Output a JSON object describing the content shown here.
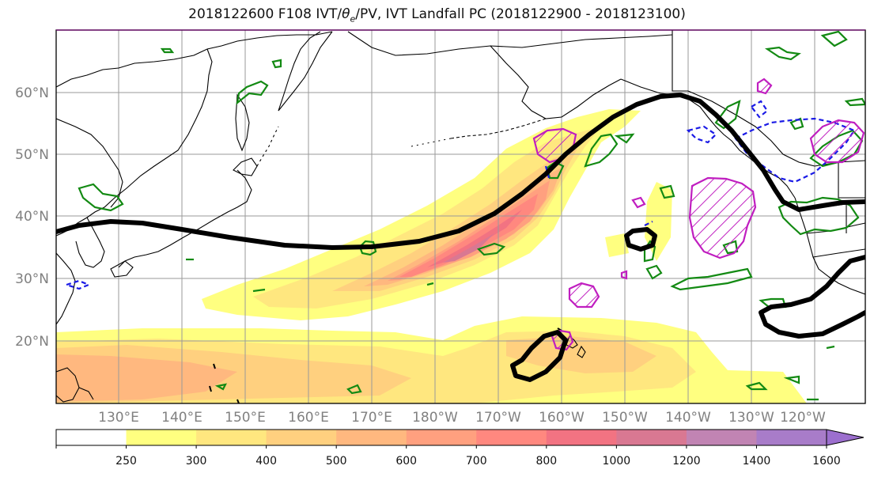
{
  "title": {
    "prefix": "2018122600 F108 IVT/",
    "theta": "θ",
    "theta_sub": "e",
    "suffix": "/PV, IVT Landfall PC (2018122900 - 2018123100)"
  },
  "lat_labels": [
    "60°N",
    "50°N",
    "40°N",
    "30°N",
    "20°N"
  ],
  "lon_labels": [
    "130°E",
    "140°E",
    "150°E",
    "160°E",
    "170°E",
    "180°W",
    "170°W",
    "160°W",
    "150°W",
    "140°W",
    "130°W",
    "120°W"
  ],
  "colorbar": {
    "ticks": [
      "250",
      "300",
      "400",
      "500",
      "600",
      "700",
      "800",
      "1000",
      "1200",
      "1400",
      "1600"
    ],
    "colors": [
      "#ffffff",
      "#ffff80",
      "#ffe77f",
      "#ffd07f",
      "#ffb87f",
      "#ffa07f",
      "#ff887f",
      "#f27382",
      "#d97892",
      "#c184b3",
      "#a87cc9"
    ],
    "extend_color": "#9c6fce"
  },
  "colors": {
    "contour_black": "#000000",
    "pv_green": "#138a13",
    "pv_blue": "#1a1ae6",
    "magenta": "#c01ec0",
    "grid": "#9a9a9a"
  }
}
